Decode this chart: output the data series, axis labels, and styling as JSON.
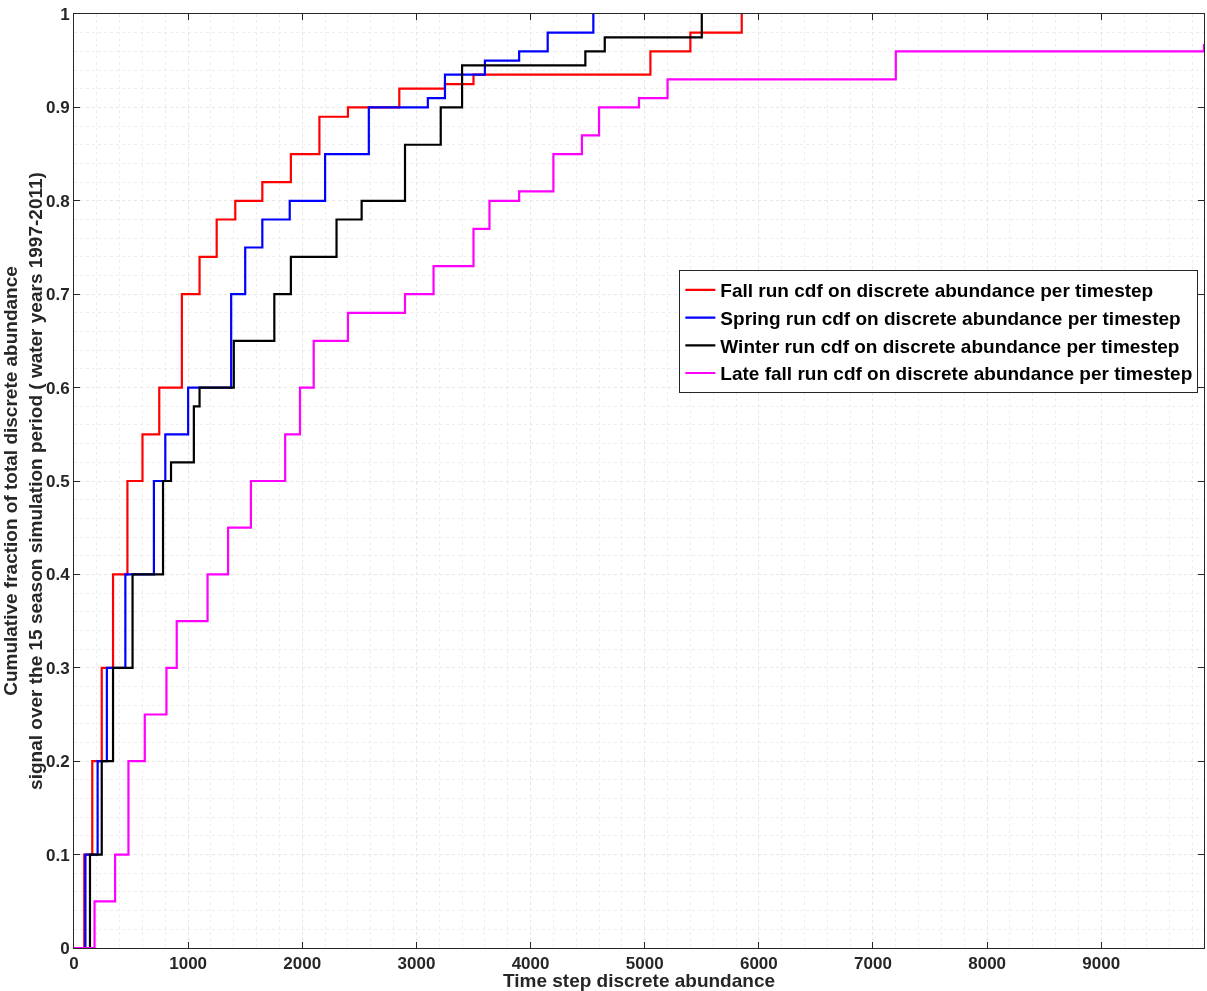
{
  "chart_data": {
    "type": "step",
    "xlabel": "Time step discrete abundance",
    "ylabel": "Cumulative fraction of total discrete abundance\nsignal over the 15 season simulation period ( water years 1997-2011)",
    "xlim": [
      0,
      9900
    ],
    "ylim": [
      0,
      1
    ],
    "xticks": [
      0,
      1000,
      2000,
      3000,
      4000,
      5000,
      6000,
      7000,
      8000,
      9000
    ],
    "yticks": [
      0,
      0.1,
      0.2,
      0.3,
      0.4,
      0.5,
      0.6,
      0.7,
      0.8,
      0.9,
      1
    ],
    "grid": true,
    "legend": "right",
    "line_style": "solid",
    "series": [
      {
        "name": "Fall run cdf on discrete abundance per timestep",
        "color": "#ff0000",
        "x": [
          0,
          90,
          160,
          243,
          342,
          468,
          600,
          747,
          945,
          1100,
          1250,
          1413,
          1650,
          1900,
          2150,
          2400,
          2850,
          3250,
          3500,
          5050,
          5400,
          5850,
          5850
        ],
        "values": [
          0,
          0.1,
          0.2,
          0.3,
          0.4,
          0.5,
          0.55,
          0.6,
          0.7,
          0.74,
          0.78,
          0.8,
          0.82,
          0.85,
          0.89,
          0.9,
          0.92,
          0.925,
          0.935,
          0.96,
          0.98,
          0.98,
          1
        ]
      },
      {
        "name": "Spring run cdf on discrete abundance per timestep",
        "color": "#0000ff",
        "x": [
          0,
          100,
          207,
          288,
          450,
          700,
          800,
          1000,
          1377,
          1500,
          1650,
          1890,
          2200,
          2583,
          3100,
          3250,
          3600,
          3900,
          4150,
          4550,
          4550
        ],
        "values": [
          0,
          0.1,
          0.2,
          0.3,
          0.4,
          0.5,
          0.55,
          0.6,
          0.7,
          0.75,
          0.78,
          0.8,
          0.85,
          0.9,
          0.91,
          0.935,
          0.95,
          0.96,
          0.98,
          0.99,
          1
        ]
      },
      {
        "name": "Winter run cdf on discrete abundance per timestep",
        "color": "#000000",
        "x": [
          0,
          140,
          243,
          342,
          513,
          780,
          850,
          1050,
          1100,
          1400,
          1755,
          1900,
          2300,
          2520,
          2900,
          3213,
          3400,
          4480,
          4650,
          5500,
          5500
        ],
        "values": [
          0,
          0.1,
          0.2,
          0.3,
          0.4,
          0.5,
          0.52,
          0.58,
          0.6,
          0.65,
          0.7,
          0.74,
          0.78,
          0.8,
          0.86,
          0.9,
          0.945,
          0.96,
          0.975,
          0.98,
          1
        ]
      },
      {
        "name": "Late fall run cdf on discrete abundance per timestep",
        "color": "#ff00ff",
        "x": [
          0,
          180,
          360,
          477,
          620,
          810,
          900,
          1170,
          1350,
          1550,
          1850,
          1980,
          2100,
          2400,
          2900,
          3150,
          3500,
          3640,
          3900,
          4200,
          4450,
          4600,
          4950,
          5200,
          7200,
          7200,
          9900
        ],
        "values": [
          0,
          0.05,
          0.1,
          0.2,
          0.25,
          0.3,
          0.35,
          0.4,
          0.45,
          0.5,
          0.55,
          0.6,
          0.65,
          0.68,
          0.7,
          0.73,
          0.77,
          0.8,
          0.81,
          0.85,
          0.87,
          0.9,
          0.91,
          0.93,
          0.935,
          0.96,
          0.968
        ]
      }
    ]
  }
}
